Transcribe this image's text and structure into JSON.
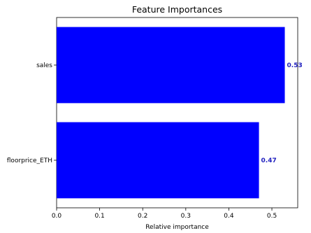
{
  "chart_data": {
    "type": "bar",
    "orientation": "horizontal",
    "title": "Feature Importances",
    "xlabel": "Relative importance",
    "ylabel": "",
    "categories": [
      "sales",
      "floorprice_ETH"
    ],
    "values": [
      0.53,
      0.47
    ],
    "data_labels": [
      "0.53",
      "0.47"
    ],
    "xlim": [
      0.0,
      0.56
    ],
    "xticks": [
      0.0,
      0.1,
      0.2,
      0.3,
      0.4,
      0.5
    ],
    "xtick_labels": [
      "0.0",
      "0.1",
      "0.2",
      "0.3",
      "0.4",
      "0.5"
    ],
    "grid": false,
    "bar_color": "#0000ff",
    "label_color": "#1f1fbf"
  }
}
